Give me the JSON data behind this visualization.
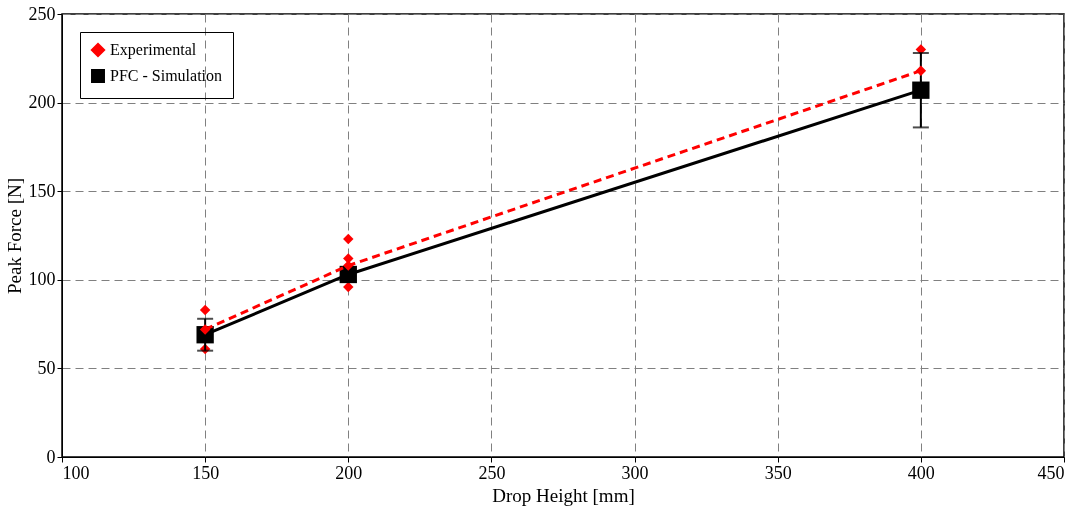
{
  "chart_data": {
    "type": "line",
    "xlabel": "Drop Height [mm]",
    "ylabel": "Peak Force [N]",
    "xlim": [
      100,
      450
    ],
    "xticks": [
      100,
      150,
      200,
      250,
      300,
      350,
      400,
      450
    ],
    "ylim": [
      0,
      250
    ],
    "yticks": [
      0,
      50,
      100,
      150,
      200,
      250
    ],
    "grid": true,
    "legend": "top left",
    "series": [
      {
        "name": "Experimental",
        "color": "#ff0000",
        "marker": "diamond",
        "line_style": "dashed",
        "x": [
          150,
          200,
          400
        ],
        "values": [
          72,
          108,
          218
        ]
      },
      {
        "name": "PFC - Simulation",
        "color": "#000000",
        "marker": "square",
        "line_style": "solid",
        "x": [
          150,
          200,
          400
        ],
        "values": [
          69,
          103,
          207
        ],
        "errors": [
          [
            60,
            78
          ],
          null,
          [
            186,
            228
          ]
        ]
      },
      {
        "type": "scatter",
        "color": "#ff0000",
        "marker": "diamond",
        "x": [
          150,
          150,
          200,
          200,
          200,
          400
        ],
        "values": [
          83,
          61,
          123,
          112,
          96,
          230
        ]
      }
    ]
  }
}
